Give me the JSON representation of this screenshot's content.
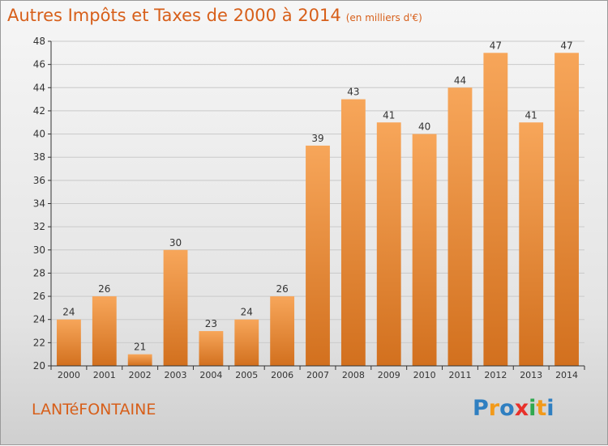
{
  "title": "Autres Impôts et Taxes de 2000 à 2014",
  "title_unit": "(en milliers d'€)",
  "commune": "LANTéFONTAINE",
  "logo": {
    "letters": [
      "P",
      "r",
      "o",
      "x",
      "i",
      "t",
      "i"
    ],
    "colors": [
      "#2f7fc1",
      "#f29a1a",
      "#2f7fc1",
      "#e8302a",
      "#2fa84f",
      "#f29a1a",
      "#2f7fc1"
    ]
  },
  "colors": {
    "accent": "#d75f1a",
    "bar_top": "#f7a65a",
    "bar_bottom": "#d2701e"
  },
  "chart_data": {
    "type": "bar",
    "categories": [
      "2000",
      "2001",
      "2002",
      "2003",
      "2004",
      "2005",
      "2006",
      "2007",
      "2008",
      "2009",
      "2010",
      "2011",
      "2012",
      "2013",
      "2014"
    ],
    "values": [
      24,
      26,
      21,
      30,
      23,
      24,
      26,
      39,
      43,
      41,
      40,
      44,
      47,
      41,
      47
    ],
    "ylim": [
      20,
      48
    ],
    "yticks": [
      20,
      22,
      24,
      26,
      28,
      30,
      32,
      34,
      36,
      38,
      40,
      42,
      44,
      46,
      48
    ],
    "grid": true,
    "title": "Autres Impôts et Taxes de 2000 à 2014",
    "xlabel": "",
    "ylabel": ""
  }
}
